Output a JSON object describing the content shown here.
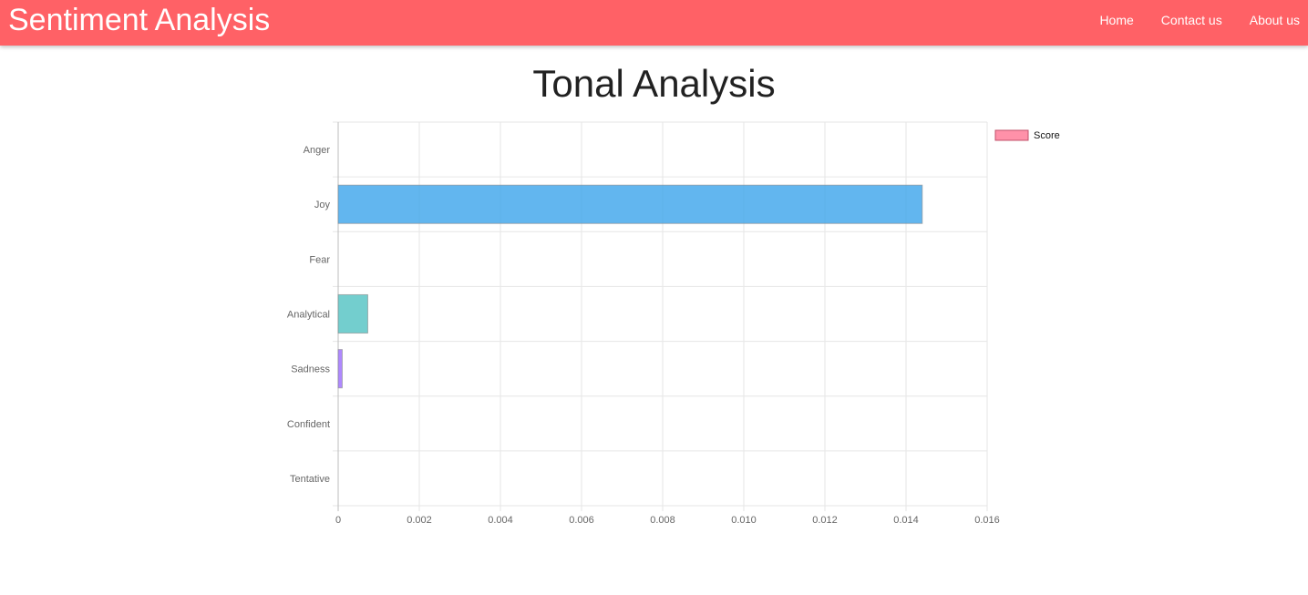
{
  "navbar": {
    "brand": "Sentiment Analysis",
    "links": [
      "Home",
      "Contact us",
      "About us"
    ],
    "background": "#ff6166"
  },
  "page": {
    "title": "Tonal Analysis"
  },
  "chart_data": {
    "type": "bar",
    "orientation": "horizontal",
    "categories": [
      "Anger",
      "Joy",
      "Fear",
      "Analytical",
      "Sadness",
      "Confident",
      "Tentative"
    ],
    "series": [
      {
        "name": "Score",
        "values": [
          0,
          0.0144,
          0,
          0.00073,
          0.0001,
          0,
          0
        ],
        "colors": [
          "#ff6384",
          "#36a2eb",
          "#ffce56",
          "#4bc0c0",
          "#9966ff",
          "#ff9f40",
          "#c9cbcf"
        ]
      }
    ],
    "xlim": [
      0,
      0.016
    ],
    "xticks": [
      "0",
      "0.002",
      "0.004",
      "0.006",
      "0.008",
      "0.010",
      "0.012",
      "0.014",
      "0.016"
    ],
    "grid": true,
    "legend": {
      "position": "right",
      "entries": [
        "Score"
      ],
      "swatch_color": "#ff6384"
    }
  }
}
